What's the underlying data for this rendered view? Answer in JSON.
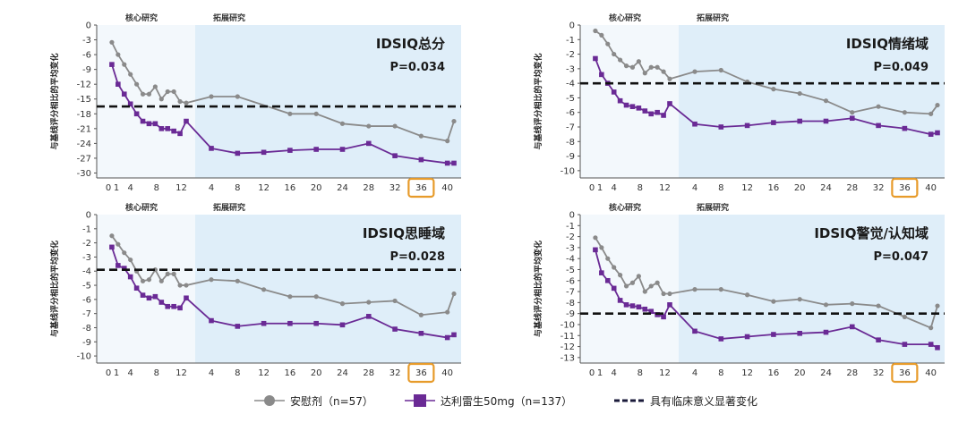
{
  "colors": {
    "placebo": "#8a8a8a",
    "drug": "#6a2a95",
    "threshold": "#111111",
    "core_bg": "#f3f8fc",
    "ext_bg": "#dfeef9",
    "highlight": "#e79b2a",
    "grid": "#cccccc"
  },
  "chart_data": [
    {
      "type": "line",
      "title": "IDSIQ总分",
      "p_value": "P=0.034",
      "ylabel": "与基线评分相比的平均变化",
      "phase_labels": {
        "core": "核心研究",
        "extension": "拓展研究"
      },
      "core_end_week": 12,
      "ylim": [
        -31,
        0
      ],
      "yticks": [
        0,
        -3,
        -6,
        -9,
        -12,
        -15,
        -18,
        -21,
        -24,
        -27,
        -30
      ],
      "threshold": -16.5,
      "xticks_core": [
        0,
        1,
        4,
        8,
        12
      ],
      "xticks_ext": [
        4,
        8,
        12,
        16,
        20,
        24,
        28,
        32,
        36,
        40
      ],
      "highlight_tick": "36",
      "series": [
        {
          "name": "安慰剂",
          "x": [
            1,
            2,
            3,
            4,
            5,
            6,
            7,
            8,
            9,
            10,
            11,
            12,
            13
          ],
          "values": [
            -3.5,
            -6,
            -8,
            -10,
            -12,
            -14,
            -14,
            -12.5,
            -15,
            -13.5,
            -13.5,
            -15.5,
            -15.8
          ],
          "ext_x": [
            4,
            8,
            16,
            20,
            24,
            28,
            32,
            36,
            40,
            41
          ],
          "ext_values": [
            -14.5,
            -14.5,
            -18,
            -18,
            -20,
            -20.5,
            -20.5,
            -22.5,
            -23.5,
            -19.5
          ]
        },
        {
          "name": "达利雷生50mg",
          "x": [
            1,
            2,
            3,
            4,
            5,
            6,
            7,
            8,
            9,
            10,
            11,
            12,
            13
          ],
          "values": [
            -8,
            -12,
            -14,
            -16,
            -18,
            -19.5,
            -20,
            -20,
            -21,
            -21,
            -21.5,
            -22,
            -19.5
          ],
          "ext_x": [
            4,
            8,
            12,
            16,
            20,
            24,
            28,
            32,
            36,
            40,
            41
          ],
          "ext_values": [
            -25,
            -26,
            -25.8,
            -25.4,
            -25.2,
            -25.2,
            -24,
            -26.5,
            -27.3,
            -28,
            -28
          ]
        }
      ]
    },
    {
      "type": "line",
      "title": "IDSIQ情绪域",
      "p_value": "P=0.049",
      "ylabel": "与基线评分相比的平均变化",
      "phase_labels": {
        "core": "核心研究",
        "extension": "拓展研究"
      },
      "core_end_week": 12,
      "ylim": [
        -10.5,
        0
      ],
      "yticks": [
        0,
        -1,
        -2,
        -3,
        -4,
        -5,
        -6,
        -7,
        -8,
        -9,
        -10
      ],
      "threshold": -4.0,
      "xticks_core": [
        0,
        1,
        4,
        8,
        12
      ],
      "xticks_ext": [
        4,
        8,
        12,
        16,
        20,
        24,
        28,
        32,
        36,
        40
      ],
      "highlight_tick": "36",
      "series": [
        {
          "name": "安慰剂",
          "x": [
            1,
            2,
            3,
            4,
            5,
            6,
            7,
            8,
            9,
            10,
            11,
            12,
            13
          ],
          "values": [
            -0.4,
            -0.7,
            -1.3,
            -2,
            -2.4,
            -2.8,
            -2.9,
            -2.5,
            -3.3,
            -2.9,
            -2.9,
            -3.2,
            -3.7
          ],
          "ext_x": [
            4,
            8,
            12,
            16,
            20,
            24,
            28,
            32,
            36,
            40,
            41
          ],
          "ext_values": [
            -3.2,
            -3.1,
            -3.9,
            -4.4,
            -4.7,
            -5.2,
            -6,
            -5.6,
            -6,
            -6.1,
            -5.5
          ]
        },
        {
          "name": "达利雷生50mg",
          "x": [
            1,
            2,
            3,
            4,
            5,
            6,
            7,
            8,
            9,
            10,
            11,
            12,
            13
          ],
          "values": [
            -2.3,
            -3.4,
            -4,
            -4.6,
            -5.2,
            -5.5,
            -5.6,
            -5.7,
            -5.9,
            -6.1,
            -6,
            -6.2,
            -5.4
          ],
          "ext_x": [
            4,
            8,
            12,
            16,
            20,
            24,
            28,
            32,
            36,
            40,
            41
          ],
          "ext_values": [
            -6.8,
            -7,
            -6.9,
            -6.7,
            -6.6,
            -6.6,
            -6.4,
            -6.9,
            -7.1,
            -7.5,
            -7.4
          ]
        }
      ]
    },
    {
      "type": "line",
      "title": "IDSIQ思睡域",
      "p_value": "P=0.028",
      "ylabel": "与基线评分相比的平均变化",
      "phase_labels": {
        "core": "核心研究",
        "extension": "拓展研究"
      },
      "core_end_week": 12,
      "ylim": [
        -10.5,
        0
      ],
      "yticks": [
        0,
        -1,
        -2,
        -3,
        -4,
        -5,
        -6,
        -7,
        -8,
        -9,
        -10
      ],
      "threshold": -3.9,
      "xticks_core": [
        0,
        1,
        4,
        8,
        12
      ],
      "xticks_ext": [
        4,
        8,
        12,
        16,
        20,
        24,
        28,
        32,
        36,
        40
      ],
      "highlight_tick": "36",
      "series": [
        {
          "name": "安慰剂",
          "x": [
            1,
            2,
            3,
            4,
            5,
            6,
            7,
            8,
            9,
            10,
            11,
            12,
            13
          ],
          "values": [
            -1.5,
            -2.1,
            -2.7,
            -3.2,
            -4,
            -4.7,
            -4.6,
            -3.9,
            -4.7,
            -4.2,
            -4.2,
            -5,
            -5
          ],
          "ext_x": [
            4,
            8,
            12,
            16,
            20,
            24,
            28,
            32,
            36,
            40,
            41
          ],
          "ext_values": [
            -4.6,
            -4.7,
            -5.3,
            -5.8,
            -5.8,
            -6.3,
            -6.2,
            -6.1,
            -7.1,
            -6.9,
            -5.6
          ]
        },
        {
          "name": "达利雷生50mg",
          "x": [
            1,
            2,
            3,
            4,
            5,
            6,
            7,
            8,
            9,
            10,
            11,
            12,
            13
          ],
          "values": [
            -2.3,
            -3.6,
            -3.8,
            -4.4,
            -5.2,
            -5.7,
            -5.9,
            -5.8,
            -6.2,
            -6.5,
            -6.5,
            -6.6,
            -5.9
          ],
          "ext_x": [
            4,
            8,
            12,
            16,
            20,
            24,
            28,
            32,
            36,
            40,
            41
          ],
          "ext_values": [
            -7.5,
            -7.9,
            -7.7,
            -7.7,
            -7.7,
            -7.8,
            -7.2,
            -8.1,
            -8.4,
            -8.7,
            -8.5
          ]
        }
      ]
    },
    {
      "type": "line",
      "title": "IDSIQ警觉/认知域",
      "p_value": "P=0.047",
      "ylabel": "与基线评分相比的平均变化",
      "phase_labels": {
        "core": "核心研究",
        "extension": "拓展研究"
      },
      "core_end_week": 12,
      "ylim": [
        -13.5,
        0
      ],
      "yticks": [
        0,
        -1,
        -2,
        -3,
        -4,
        -5,
        -6,
        -7,
        -8,
        -9,
        -10,
        -11,
        -12,
        -13
      ],
      "threshold": -9.0,
      "xticks_core": [
        0,
        1,
        4,
        8,
        12
      ],
      "xticks_ext": [
        4,
        8,
        12,
        16,
        20,
        24,
        28,
        32,
        36,
        40
      ],
      "highlight_tick": "36",
      "series": [
        {
          "name": "安慰剂",
          "x": [
            1,
            2,
            3,
            4,
            5,
            6,
            7,
            8,
            9,
            10,
            11,
            12,
            13
          ],
          "values": [
            -2.1,
            -3,
            -4,
            -4.8,
            -5.5,
            -6.5,
            -6.2,
            -5.6,
            -7,
            -6.5,
            -6.2,
            -7.2,
            -7.2
          ],
          "ext_x": [
            4,
            8,
            12,
            16,
            20,
            24,
            28,
            32,
            36,
            40,
            41
          ],
          "ext_values": [
            -6.8,
            -6.8,
            -7.3,
            -7.9,
            -7.7,
            -8.2,
            -8.1,
            -8.3,
            -9.3,
            -10.3,
            -8.3
          ]
        },
        {
          "name": "达利雷生50mg",
          "x": [
            1,
            2,
            3,
            4,
            5,
            6,
            7,
            8,
            9,
            10,
            11,
            12,
            13
          ],
          "values": [
            -3.2,
            -5.3,
            -6,
            -6.7,
            -7.8,
            -8.2,
            -8.3,
            -8.4,
            -8.6,
            -8.8,
            -9.1,
            -9.3,
            -8.2
          ],
          "ext_x": [
            4,
            8,
            12,
            16,
            20,
            24,
            28,
            32,
            36,
            40,
            41
          ],
          "ext_values": [
            -10.6,
            -11.3,
            -11.1,
            -10.9,
            -10.8,
            -10.7,
            -10.2,
            -11.4,
            -11.8,
            -11.8,
            -12.1
          ]
        }
      ]
    }
  ],
  "legend": {
    "placebo": "安慰剂（n=57）",
    "drug": "达利雷生50mg（n=137）",
    "threshold": "具有临床意义显著变化"
  }
}
